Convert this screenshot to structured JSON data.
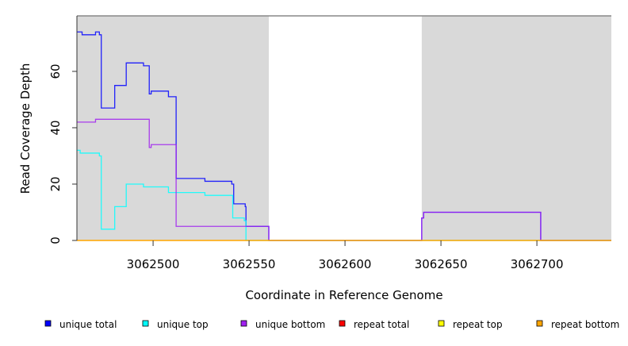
{
  "chart_data": {
    "type": "line",
    "step": true,
    "xlabel": "Coordinate in Reference Genome",
    "ylabel": "Read Coverage Depth",
    "xlim": [
      3062460.3,
      3062738.8
    ],
    "ylim": [
      0,
      79.7
    ],
    "xticks": [
      3062500,
      3062550,
      3062600,
      3062650,
      3062700
    ],
    "xtick_labels": [
      "3062500",
      "3062550",
      "3062600",
      "3062650",
      "3062700"
    ],
    "yticks": [
      0,
      20,
      40,
      60
    ],
    "ytick_labels": [
      "0",
      "20",
      "40",
      "60"
    ],
    "shaded_regions": [
      [
        3062460.3,
        3062560.3
      ],
      [
        3062640,
        3062738.8
      ]
    ],
    "shade_color": "#d9d9d9",
    "series": [
      {
        "name": "unique total",
        "color": "#0000ff",
        "x": [
          3062460.3,
          3062463,
          3062470,
          3062472,
          3062473,
          3062480,
          3062486,
          3062495,
          3062498,
          3062499,
          3062508,
          3062512,
          3062527,
          3062541,
          3062542,
          3062548,
          3062548.4,
          3062560.3,
          3062640,
          3062641,
          3062702
        ],
        "y": [
          74,
          73,
          74,
          73,
          47,
          55,
          63,
          62,
          52,
          53,
          51,
          22,
          21,
          20,
          13,
          12,
          5,
          0,
          8,
          10,
          0
        ]
      },
      {
        "name": "unique top",
        "color": "#00ffff",
        "x": [
          3062460.3,
          3062462,
          3062472,
          3062473,
          3062480,
          3062486,
          3062495,
          3062508,
          3062527,
          3062541.5,
          3062547.5,
          3062548.4
        ],
        "y": [
          32,
          31,
          30,
          4,
          12,
          20,
          19,
          17,
          16,
          8,
          7,
          0
        ]
      },
      {
        "name": "unique bottom",
        "color": "#a020f0",
        "x": [
          3062460.3,
          3062470,
          3062498,
          3062499,
          3062512,
          3062560.3,
          3062640,
          3062641,
          3062702
        ],
        "y": [
          42,
          43,
          33,
          34,
          5,
          0,
          8,
          10,
          0
        ]
      },
      {
        "name": "repeat total",
        "color": "#ff0000",
        "x": [
          3062460.3
        ],
        "y": [
          0
        ]
      },
      {
        "name": "repeat top",
        "color": "#ffff00",
        "x": [
          3062460.3
        ],
        "y": [
          0
        ]
      },
      {
        "name": "repeat bottom",
        "color": "#ffa500",
        "x": [
          3062460.3
        ],
        "y": [
          0
        ]
      }
    ],
    "legend": [
      "unique total",
      "unique top",
      "unique bottom",
      "repeat total",
      "repeat top",
      "repeat bottom"
    ],
    "legend_position": "bottom"
  }
}
